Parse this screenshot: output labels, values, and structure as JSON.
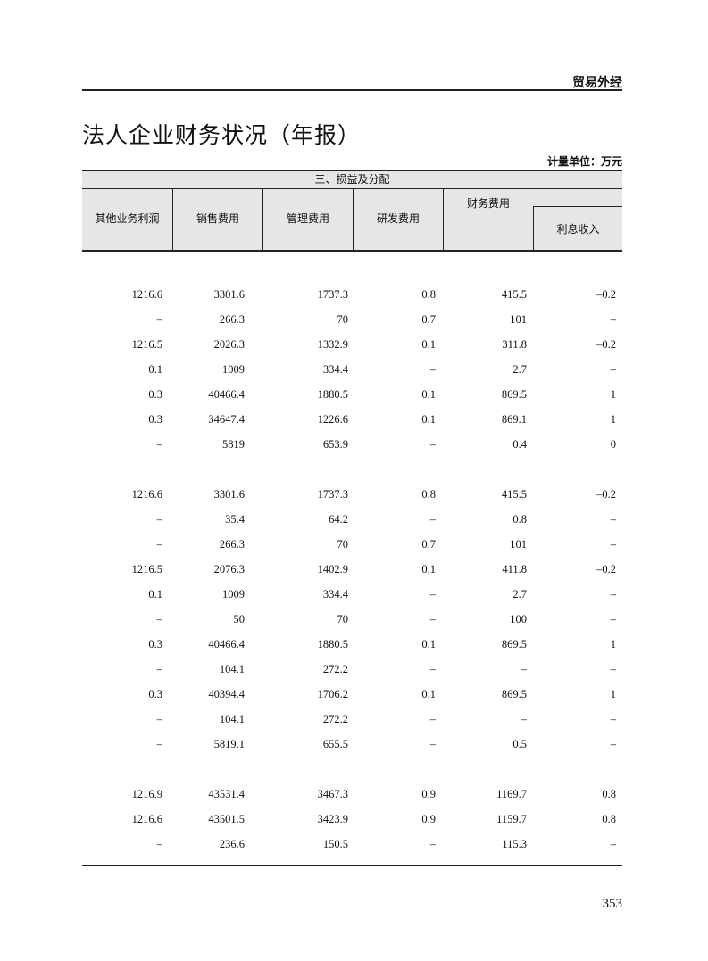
{
  "running_header": "贸易外经",
  "title": "法人企业财务状况（年报）",
  "unit": "计量单位：万元",
  "table": {
    "group_header": "三、损益及分配",
    "columns": [
      "其他业务利润",
      "销售费用",
      "管理费用",
      "研发费用",
      "财务费用"
    ],
    "sub_column": "利息收入",
    "blocks": [
      [
        [
          "1216.6",
          "3301.6",
          "1737.3",
          "0.8",
          "415.5",
          "–0.2"
        ],
        [
          "–",
          "266.3",
          "70",
          "0.7",
          "101",
          "–"
        ],
        [
          "1216.5",
          "2026.3",
          "1332.9",
          "0.1",
          "311.8",
          "–0.2"
        ],
        [
          "0.1",
          "1009",
          "334.4",
          "–",
          "2.7",
          "–"
        ],
        [
          "0.3",
          "40466.4",
          "1880.5",
          "0.1",
          "869.5",
          "1"
        ],
        [
          "0.3",
          "34647.4",
          "1226.6",
          "0.1",
          "869.1",
          "1"
        ],
        [
          "–",
          "5819",
          "653.9",
          "–",
          "0.4",
          "0"
        ]
      ],
      [
        [
          "1216.6",
          "3301.6",
          "1737.3",
          "0.8",
          "415.5",
          "–0.2"
        ],
        [
          "–",
          "35.4",
          "64.2",
          "–",
          "0.8",
          "–"
        ],
        [
          "–",
          "266.3",
          "70",
          "0.7",
          "101",
          "–"
        ],
        [
          "1216.5",
          "2076.3",
          "1402.9",
          "0.1",
          "411.8",
          "–0.2"
        ],
        [
          "0.1",
          "1009",
          "334.4",
          "–",
          "2.7",
          "–"
        ],
        [
          "–",
          "50",
          "70",
          "–",
          "100",
          "–"
        ],
        [
          "0.3",
          "40466.4",
          "1880.5",
          "0.1",
          "869.5",
          "1"
        ],
        [
          "–",
          "104.1",
          "272.2",
          "–",
          "–",
          "–"
        ],
        [
          "0.3",
          "40394.4",
          "1706.2",
          "0.1",
          "869.5",
          "1"
        ],
        [
          "–",
          "104.1",
          "272.2",
          "–",
          "–",
          "–"
        ],
        [
          "–",
          "5819.1",
          "655.5",
          "–",
          "0.5",
          "–"
        ]
      ],
      [
        [
          "1216.9",
          "43531.4",
          "3467.3",
          "0.9",
          "1169.7",
          "0.8"
        ],
        [
          "1216.6",
          "43501.5",
          "3423.9",
          "0.9",
          "1159.7",
          "0.8"
        ],
        [
          "–",
          "236.6",
          "150.5",
          "–",
          "115.3",
          "–"
        ]
      ]
    ]
  },
  "page_number": "353"
}
